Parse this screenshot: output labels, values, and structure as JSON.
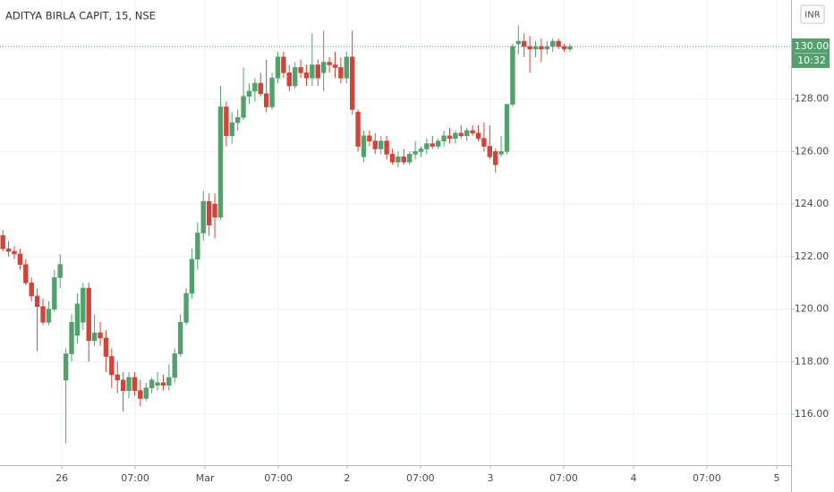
{
  "chart_data": {
    "type": "candlestick",
    "title": "ADITYA BIRLA CAPIT, 15, NSE",
    "currency": "INR",
    "last_price": {
      "value": 130,
      "label": "130.00"
    },
    "countdown": "10:32",
    "up_color": "#53a06d",
    "down_color": "#d0453b",
    "grid": true,
    "x": [
      0,
      1,
      2,
      3,
      4,
      5,
      6,
      7,
      8,
      9,
      10,
      11,
      12,
      13,
      14,
      15,
      16,
      17,
      18,
      19,
      20,
      21,
      22,
      23,
      24,
      25,
      26,
      27,
      28,
      29,
      30,
      31,
      32,
      33,
      34,
      35,
      36,
      37,
      38,
      39,
      40,
      41,
      42,
      43,
      44,
      45,
      46,
      47,
      48,
      49,
      50,
      51,
      52,
      53,
      54,
      55,
      56,
      57,
      58,
      59,
      60,
      61,
      62,
      63,
      64,
      65,
      66,
      67,
      68,
      69,
      70,
      71,
      72,
      73,
      74,
      75,
      76,
      77,
      78,
      79,
      80,
      81,
      82,
      83,
      84,
      85,
      86,
      87,
      88,
      89,
      90,
      91,
      92,
      93,
      94,
      95,
      96,
      97,
      98,
      99
    ],
    "open": [
      122.8,
      122.3,
      122.2,
      122.1,
      121.7,
      121.0,
      120.5,
      120.1,
      119.5,
      120.0,
      121.2,
      117.3,
      118.3,
      119.0,
      119.5,
      120.8,
      118.8,
      119.1,
      118.9,
      118.2,
      117.5,
      117.3,
      116.9,
      117.4,
      116.9,
      116.6,
      117.0,
      117.1,
      117.2,
      117.1,
      117.4,
      118.3,
      119.5,
      120.6,
      121.9,
      122.9,
      124.1,
      124.0,
      123.5,
      127.7,
      126.6,
      127.1,
      127.3,
      128.1,
      128.3,
      128.6,
      128.2,
      127.7,
      128.8,
      129.6,
      129.0,
      128.5,
      129.2,
      129.0,
      128.8,
      129.3,
      129.0,
      129.4,
      129.3,
      129.2,
      128.8,
      129.6,
      127.5,
      125.8,
      126.6,
      126.4,
      126.1,
      126.4,
      125.9,
      125.6,
      125.8,
      125.6,
      125.9,
      126.0,
      126.1,
      126.3,
      126.2,
      126.4,
      126.6,
      126.5,
      126.7,
      126.6,
      126.8,
      126.7,
      126.5,
      126.2,
      126.0,
      125.9,
      126.0,
      127.8,
      130.1,
      130.2,
      130.0,
      129.9,
      130.0,
      129.9,
      130.0,
      130.2,
      130.0,
      129.9
    ],
    "high": [
      123.0,
      122.6,
      122.4,
      122.3,
      121.9,
      121.2,
      120.8,
      120.4,
      120.3,
      121.5,
      122.1,
      118.5,
      119.8,
      120.6,
      121.0,
      121.0,
      119.8,
      119.5,
      119.2,
      118.5,
      118.0,
      117.6,
      117.6,
      117.6,
      117.3,
      117.2,
      117.4,
      117.6,
      117.5,
      117.9,
      118.5,
      119.8,
      120.8,
      122.3,
      123.3,
      124.5,
      124.4,
      124.4,
      128.5,
      127.9,
      127.5,
      127.6,
      129.2,
      128.6,
      128.8,
      129.0,
      129.5,
      129.0,
      129.8,
      129.8,
      129.3,
      129.4,
      129.5,
      129.3,
      130.5,
      129.5,
      130.6,
      129.6,
      129.8,
      129.6,
      129.8,
      130.6,
      127.6,
      126.8,
      126.8,
      126.7,
      126.6,
      126.6,
      126.1,
      126.0,
      126.1,
      126.0,
      126.4,
      126.2,
      126.5,
      126.6,
      126.5,
      126.8,
      126.9,
      126.8,
      127.0,
      126.9,
      127.0,
      127.0,
      127.1,
      127.0,
      126.1,
      126.6,
      127.8,
      130.1,
      130.8,
      130.5,
      130.4,
      130.2,
      130.3,
      130.2,
      130.3,
      130.3,
      130.1,
      130.1
    ],
    "low": [
      122.2,
      122.0,
      121.9,
      121.5,
      120.9,
      120.3,
      118.4,
      119.4,
      119.4,
      119.9,
      120.8,
      114.9,
      118.0,
      118.7,
      119.2,
      118.0,
      118.6,
      118.6,
      117.6,
      117.0,
      116.8,
      116.1,
      116.6,
      116.7,
      116.3,
      116.5,
      116.8,
      116.9,
      116.9,
      116.9,
      117.2,
      118.2,
      119.4,
      120.4,
      121.5,
      122.6,
      122.8,
      122.7,
      123.4,
      126.2,
      126.3,
      126.8,
      127.2,
      127.8,
      127.9,
      128.1,
      127.5,
      127.6,
      128.6,
      128.8,
      128.3,
      128.4,
      128.8,
      128.5,
      128.5,
      128.5,
      128.3,
      129.0,
      128.8,
      128.6,
      128.6,
      127.4,
      126.0,
      125.6,
      126.2,
      125.9,
      125.9,
      125.7,
      125.5,
      125.4,
      125.5,
      125.5,
      125.7,
      125.8,
      125.9,
      126.1,
      126.1,
      126.2,
      126.3,
      126.3,
      126.5,
      126.4,
      126.6,
      126.4,
      126.0,
      125.7,
      125.2,
      125.8,
      125.9,
      127.7,
      129.7,
      129.6,
      129.0,
      129.6,
      129.4,
      129.7,
      129.8,
      129.9,
      129.8,
      129.8
    ],
    "close": [
      122.3,
      122.2,
      122.1,
      121.7,
      121.0,
      120.5,
      120.1,
      119.5,
      120.0,
      121.2,
      121.7,
      118.3,
      119.5,
      120.2,
      120.8,
      118.8,
      119.1,
      118.9,
      118.2,
      117.5,
      117.3,
      116.9,
      117.4,
      116.9,
      116.6,
      117.0,
      117.3,
      117.2,
      117.1,
      117.4,
      118.3,
      119.5,
      120.6,
      121.9,
      122.9,
      124.1,
      123.2,
      123.5,
      127.7,
      126.6,
      127.1,
      127.3,
      128.1,
      128.3,
      128.6,
      128.2,
      127.7,
      128.8,
      129.6,
      129.0,
      128.5,
      129.2,
      129.0,
      128.8,
      129.3,
      128.8,
      129.4,
      129.3,
      129.2,
      128.8,
      129.6,
      127.6,
      126.2,
      126.6,
      126.4,
      126.1,
      126.4,
      125.9,
      125.6,
      125.8,
      125.6,
      125.9,
      126.0,
      126.1,
      126.3,
      126.2,
      126.4,
      126.6,
      126.5,
      126.7,
      126.6,
      126.8,
      126.7,
      126.5,
      126.2,
      125.8,
      125.5,
      126.0,
      127.8,
      130.0,
      130.2,
      130.0,
      129.9,
      130.0,
      129.9,
      130.0,
      130.2,
      130.0,
      129.9,
      130.0
    ],
    "xlim": [
      -0.5,
      137.6
    ],
    "xticks": [
      {
        "value": 10.3,
        "label": "26"
      },
      {
        "value": 23.1,
        "label": "07:00"
      },
      {
        "value": 35.3,
        "label": "Mar"
      },
      {
        "value": 48.1,
        "label": "07:00"
      },
      {
        "value": 60.1,
        "label": "2"
      },
      {
        "value": 72.9,
        "label": "07:00"
      },
      {
        "value": 85.1,
        "label": "3"
      },
      {
        "value": 97.9,
        "label": "07:00"
      },
      {
        "value": 110.1,
        "label": "4"
      },
      {
        "value": 122.9,
        "label": "07:00"
      },
      {
        "value": 135.1,
        "label": "5"
      }
    ],
    "ylim": [
      114.06,
      131.77
    ],
    "yticks": [
      {
        "value": 116,
        "label": "116.00"
      },
      {
        "value": 118,
        "label": "118.00"
      },
      {
        "value": 120,
        "label": "120.00"
      },
      {
        "value": 122,
        "label": "122.00"
      },
      {
        "value": 124,
        "label": "124.00"
      },
      {
        "value": 126,
        "label": "126.00"
      },
      {
        "value": 128,
        "label": "128.00"
      }
    ]
  }
}
